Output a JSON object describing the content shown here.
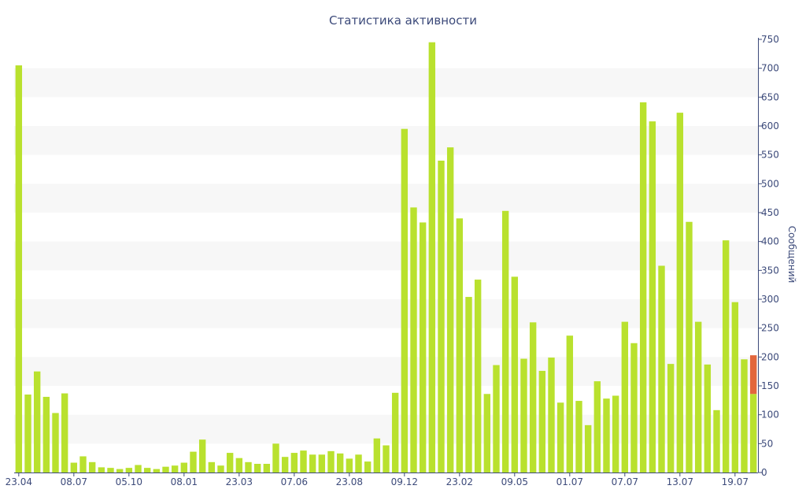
{
  "chart_data": {
    "type": "bar",
    "title": "Статистика активности",
    "xlabel": "",
    "ylabel": "Сообщений",
    "ylim": [
      0,
      750
    ],
    "yticks": [
      0,
      50,
      100,
      150,
      200,
      250,
      300,
      350,
      400,
      450,
      500,
      550,
      600,
      650,
      700,
      750
    ],
    "y_axis_side": "right",
    "grid": "alternating horizontal bands",
    "x_tick_labels": [
      {
        "index": 0,
        "label": "23.04"
      },
      {
        "index": 6,
        "label": "08.07"
      },
      {
        "index": 12,
        "label": "05.10"
      },
      {
        "index": 18,
        "label": "08.01"
      },
      {
        "index": 24,
        "label": "23.03"
      },
      {
        "index": 30,
        "label": "07.06"
      },
      {
        "index": 36,
        "label": "23.08"
      },
      {
        "index": 42,
        "label": "09.12"
      },
      {
        "index": 48,
        "label": "23.02"
      },
      {
        "index": 54,
        "label": "09.05"
      },
      {
        "index": 60,
        "label": "01.07"
      },
      {
        "index": 66,
        "label": "07.07"
      },
      {
        "index": 72,
        "label": "13.07"
      },
      {
        "index": 78,
        "label": "19.07"
      }
    ],
    "values": [
      705,
      135,
      175,
      131,
      103,
      137,
      17,
      28,
      18,
      9,
      8,
      6,
      8,
      13,
      8,
      6,
      10,
      12,
      17,
      36,
      57,
      18,
      12,
      34,
      25,
      18,
      15,
      15,
      50,
      27,
      34,
      38,
      31,
      31,
      37,
      33,
      24,
      31,
      19,
      59,
      47,
      138,
      595,
      459,
      433,
      745,
      540,
      563,
      440,
      304,
      334,
      136,
      186,
      453,
      339,
      197,
      260,
      176,
      199,
      121,
      237,
      124,
      82,
      158,
      128,
      133,
      261,
      224,
      641,
      608,
      358,
      188,
      623,
      434,
      261,
      187,
      108,
      402,
      295,
      196,
      136
    ],
    "highlight": {
      "index": 80,
      "extra_value": 67
    },
    "colors": {
      "bar": "#b9e12e",
      "highlight": "#e2663c",
      "axis": "#3c4a7a",
      "band": "#f7f7f7"
    }
  }
}
